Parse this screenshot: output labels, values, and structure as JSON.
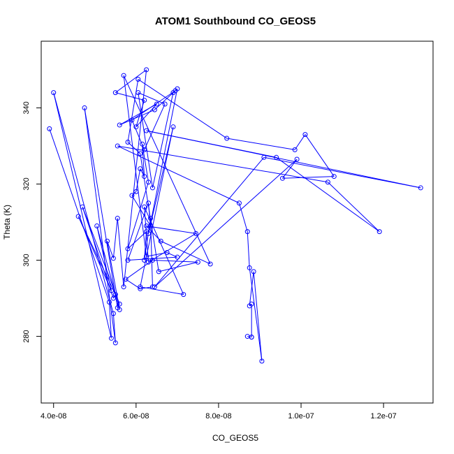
{
  "chart_data": {
    "type": "scatter",
    "title": "ATOM1 Southbound CO_GEOS5",
    "xlabel": "CO_GEOS5",
    "ylabel": "Theta (K)",
    "xlim": [
      3.7e-08,
      1.32e-07
    ],
    "ylim": [
      262.5,
      357.5
    ],
    "x_ticks": [
      4e-08,
      6e-08,
      8e-08,
      1e-07,
      1.2e-07
    ],
    "x_tick_labels": [
      "4.0e-08",
      "6.0e-08",
      "8.0e-08",
      "1.0e-07",
      "1.2e-07"
    ],
    "y_ticks": [
      280,
      300,
      320,
      340
    ],
    "y_tick_labels": [
      "280",
      "300",
      "320",
      "340"
    ],
    "grid": false,
    "legend": "none",
    "series_color": "#0000ff",
    "x": [
      3.9e-08,
      5.35e-08,
      5.4e-08,
      4e-08,
      5.45e-08,
      5.5e-08,
      4.75e-08,
      5.55e-08,
      5.6e-08,
      4.7e-08,
      5.45e-08,
      5.5e-08,
      4.6e-08,
      5.4e-08,
      5.05e-08,
      5.6e-08,
      5.3e-08,
      5.45e-08,
      5.55e-08,
      5.7e-08,
      6.25e-08,
      5.5e-08,
      6.2e-08,
      6e-08,
      6.5e-08,
      5.6e-08,
      6.45e-08,
      6.95e-08,
      5.9e-08,
      6.2e-08,
      6.7e-08,
      6.05e-08,
      6.4e-08,
      6.9e-08,
      7e-08,
      6.3e-08,
      6.9e-08,
      6.1e-08,
      7.15e-08,
      6.2e-08,
      6.3e-08,
      7.45e-08,
      6.25e-08,
      6.6e-08,
      7.8e-08,
      5.7e-08,
      6.25e-08,
      6.75e-08,
      7e-08,
      5.8e-08,
      6.3e-08,
      6.35e-08,
      5.9e-08,
      6e-08,
      6.1e-08,
      6.2e-08,
      6.15e-08,
      6.3e-08,
      5.8e-08,
      6.25e-08,
      6.2e-08,
      6.35e-08,
      6.4e-08,
      6.1e-08,
      5.75e-08,
      6.4e-08,
      7.5e-08,
      6.55e-08,
      6.1e-08,
      5.8e-08,
      6.05e-08,
      8.2e-08,
      9.85e-08,
      1.01e-07,
      1.08e-07,
      9.55e-08,
      9.9e-08,
      6.45e-08,
      9.1e-08,
      1.29e-07,
      6.25e-08,
      9.4e-08,
      1.19e-07,
      1.065e-07,
      5.55e-08,
      8.5e-08,
      8.7e-08,
      8.75e-08,
      9.05e-08,
      8.85e-08,
      8.75e-08,
      8.8e-08,
      8.8e-08,
      8.8e-08,
      8.7e-08
    ],
    "y": [
      334.5,
      289.0,
      279.5,
      344.0,
      286.0,
      278.3,
      340.0,
      287.5,
      288.5,
      314.0,
      290.0,
      291.0,
      311.5,
      292.0,
      309.0,
      287.0,
      305.0,
      300.5,
      311.0,
      293.0,
      350.0,
      344.0,
      342.0,
      335.0,
      341.0,
      335.5,
      339.5,
      344.5,
      336.8,
      329.0,
      341.0,
      344.0,
      319.0,
      344.0,
      345.0,
      307.0,
      335.0,
      293.0,
      291.0,
      314.0,
      299.5,
      307.0,
      309.0,
      305.0,
      299.0,
      348.5,
      301.0,
      302.0,
      300.8,
      300.0,
      315.0,
      309.0,
      317.0,
      318.0,
      324.0,
      322.0,
      330.5,
      320.5,
      303.0,
      307.5,
      300.0,
      311.0,
      293.0,
      292.5,
      295.0,
      300.0,
      299.5,
      297.0,
      328.0,
      331.0,
      347.5,
      332.0,
      329.0,
      333.0,
      322.0,
      321.5,
      326.5,
      293.0,
      327.0,
      319.0,
      334.0,
      327.0,
      307.5,
      320.5,
      330.0,
      315.0,
      307.5,
      298.0,
      273.5,
      297.0,
      288.0,
      288.5,
      279.8,
      279.8,
      280.0
    ]
  }
}
